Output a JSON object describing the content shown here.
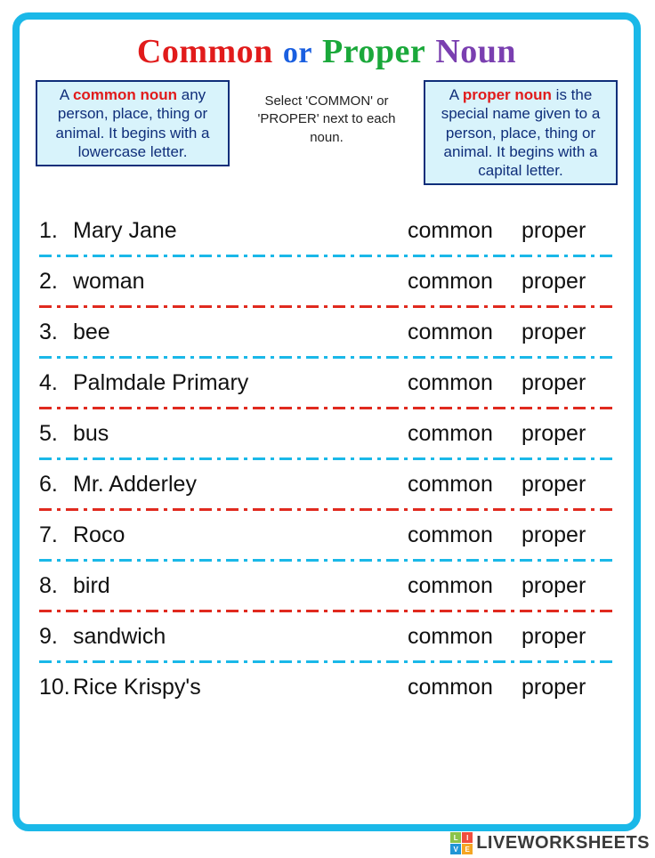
{
  "title": {
    "word1": "Common",
    "word2": "or",
    "word3": "Proper",
    "word4": "Noun",
    "colors": {
      "common": "#e11b1b",
      "or": "#1a5fe0",
      "proper": "#1aa83a",
      "noun": "#7a3fb0"
    }
  },
  "definitions": {
    "common": {
      "keyword": "common noun",
      "prefix": "A ",
      "text": " any person, place, thing or animal. It begins with a lowercase letter."
    },
    "proper": {
      "keyword": "proper noun",
      "prefix": "A ",
      "text": " is the special name given to a person, place, thing or animal. It begins with a capital letter."
    },
    "box_bg": "#d8f3fb",
    "box_border": "#0f2e7a",
    "keyword_color": "#e11b1b"
  },
  "instruction": "Select 'COMMON' or 'PROPER' next to each noun.",
  "options": {
    "common_label": "common",
    "proper_label": "proper"
  },
  "items": [
    {
      "n": "1.",
      "word": "Mary Jane"
    },
    {
      "n": "2.",
      "word": "woman"
    },
    {
      "n": "3.",
      "word": "bee"
    },
    {
      "n": "4.",
      "word": "Palmdale Primary"
    },
    {
      "n": "5.",
      "word": "bus"
    },
    {
      "n": "6.",
      "word": "Mr. Adderley"
    },
    {
      "n": "7.",
      "word": "Roco"
    },
    {
      "n": "8.",
      "word": "bird"
    },
    {
      "n": "9.",
      "word": "sandwich"
    },
    {
      "n": "10.",
      "word": "Rice Krispy's"
    }
  ],
  "divider_colors": {
    "blue": "#1ab8e8",
    "red": "#e02a1f"
  },
  "page_border_color": "#1ab8e8",
  "watermark": {
    "text": "LIVEWORKSHEETS",
    "logo": [
      "L",
      "I",
      "V",
      "E"
    ],
    "logo_colors": [
      "#8bc34a",
      "#f04e3e",
      "#2196d6",
      "#f5a623"
    ]
  }
}
